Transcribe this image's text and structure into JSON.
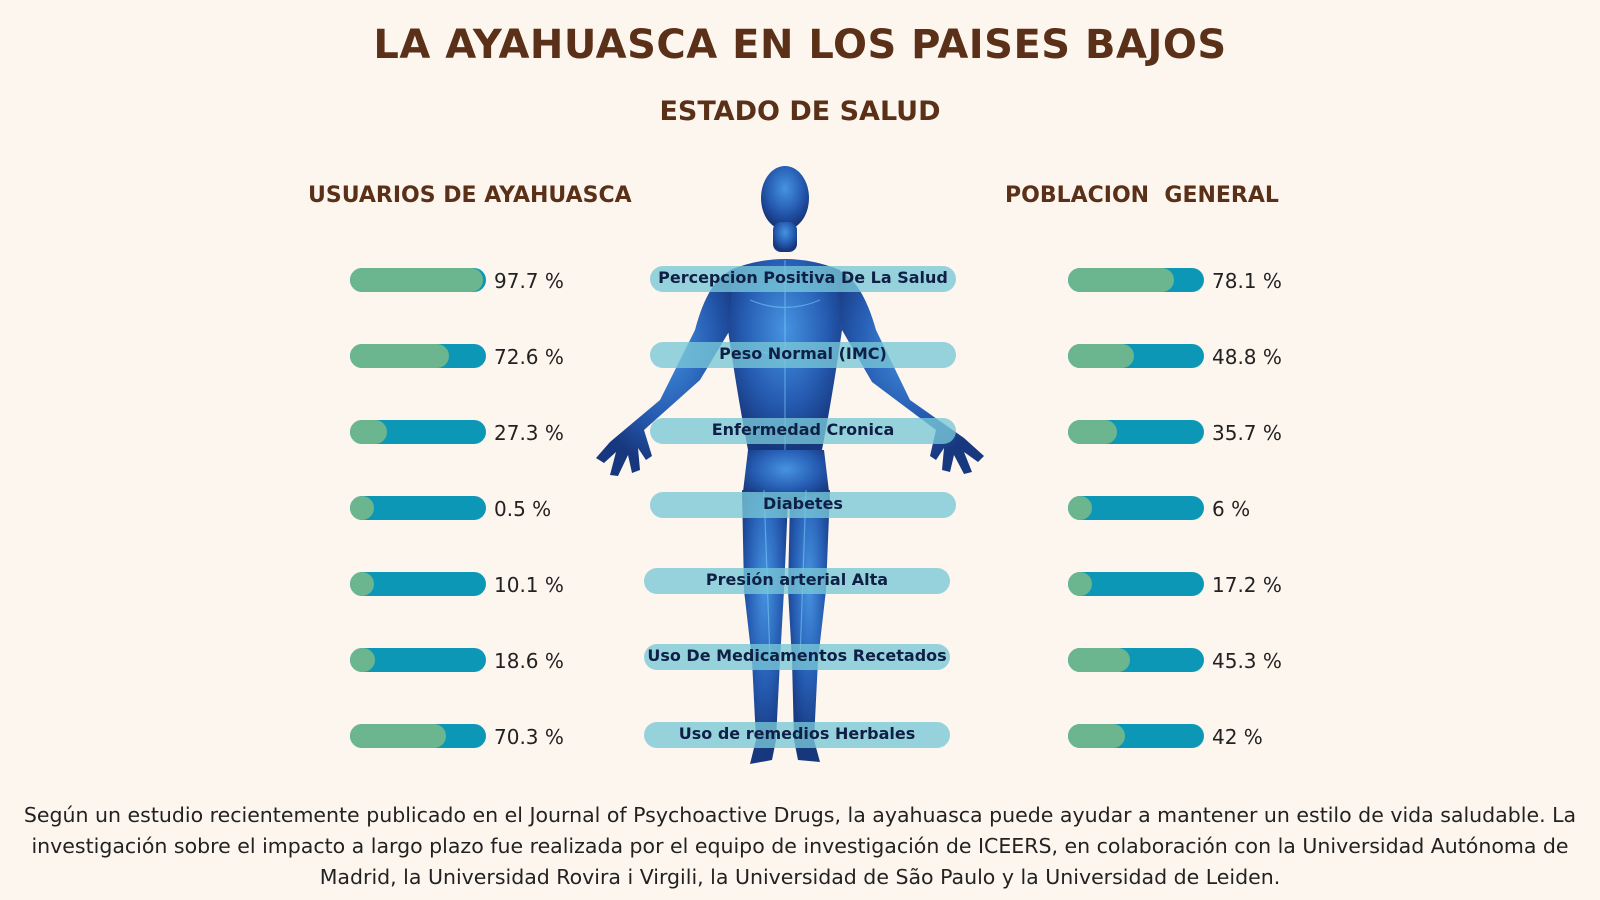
{
  "title": "LA AYAHUASCA EN LOS PAISES BAJOS",
  "subtitle": "ESTADO DE SALUD",
  "chart_data": {
    "type": "bar",
    "categories": [
      "Percepcion Positiva De La Salud",
      "Peso Normal (IMC)",
      "Enfermedad Cronica",
      "Diabetes",
      "Presión arterial Alta",
      "Uso De Medicamentos Recetados",
      "Uso de remedios Herbales"
    ],
    "series": [
      {
        "name": "USUARIOS DE AYAHUASCA",
        "values": [
          97.7,
          72.6,
          27.3,
          0.5,
          10.1,
          18.6,
          70.3
        ],
        "labels": [
          "97.7 %",
          "72.6 %",
          "27.3 %",
          "0.5 %",
          "10.1 %",
          "18.6 %",
          "70.3 %"
        ]
      },
      {
        "name": "POBLACION  GENERAL",
        "values": [
          78.1,
          48.8,
          35.7,
          6,
          17.2,
          45.3,
          42
        ],
        "labels": [
          "78.1 %",
          "48.8 %",
          "35.7 %",
          "6 %",
          "17.2 %",
          "45.3 %",
          "42 %"
        ]
      }
    ],
    "ylim": [
      0,
      100
    ],
    "colors": {
      "fill": "#6bb58f",
      "track": "#0b97b5"
    }
  },
  "note": "Según un estudio recientemente publicado en el Journal of Psychoactive Drugs, la ayahuasca puede ayudar a mantener un estilo de vida saludable. La investigación sobre el impacto a largo plazo fue realizada por el equipo de investigación de ICEERS, en colaboración con la Universidad Autónoma de Madrid, la Universidad Rovira i Virgili, la Universidad de São Paulo y la Universidad de Leiden."
}
